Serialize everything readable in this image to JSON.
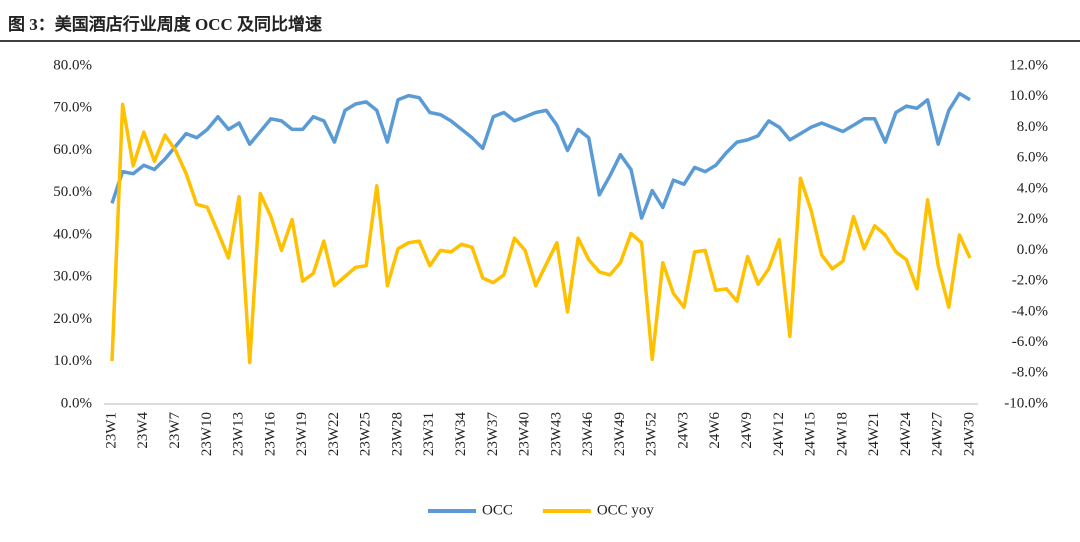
{
  "chart_data": {
    "type": "line",
    "title": "图 3：美国酒店行业周度 OCC 及同比增速",
    "categories": [
      "23W1",
      null,
      null,
      "23W4",
      null,
      null,
      "23W7",
      null,
      null,
      "23W10",
      null,
      null,
      "23W13",
      null,
      null,
      "23W16",
      null,
      null,
      "23W19",
      null,
      null,
      "23W22",
      null,
      null,
      "23W25",
      null,
      null,
      "23W28",
      null,
      null,
      "23W31",
      null,
      null,
      "23W34",
      null,
      null,
      "23W37",
      null,
      null,
      "23W40",
      null,
      null,
      "23W43",
      null,
      null,
      "23W46",
      null,
      null,
      "23W49",
      null,
      null,
      "23W52",
      null,
      null,
      "24W3",
      null,
      null,
      "24W6",
      null,
      null,
      "24W9",
      null,
      null,
      "24W12",
      null,
      null,
      "24W15",
      null,
      null,
      "24W18",
      null,
      null,
      "24W21",
      null,
      null,
      "24W24",
      null,
      null,
      "24W27",
      null,
      null,
      "24W30"
    ],
    "series": [
      {
        "name": "OCC",
        "color": "#5b9bd5",
        "values": [
          47.5,
          55,
          54.5,
          56.5,
          55.5,
          58,
          61,
          64,
          63,
          65,
          68,
          65,
          66.5,
          61.5,
          64.5,
          67.5,
          67,
          65,
          65,
          68,
          67,
          62,
          69.5,
          71,
          71.5,
          69.5,
          62,
          72,
          73,
          72.5,
          69,
          68.5,
          67,
          65,
          63,
          60.5,
          68,
          69,
          67,
          68,
          69,
          69.5,
          66,
          60,
          65,
          63,
          49.5,
          54,
          59,
          55.5,
          44,
          50.5,
          46.5,
          53,
          52,
          56,
          55,
          56.5,
          59.5,
          62,
          62.5,
          63.5,
          67,
          65.5,
          62.5,
          64,
          65.5,
          66.5,
          65.5,
          64.5,
          66,
          67.5,
          67.5,
          62,
          69,
          70.5,
          70,
          72,
          61.5,
          69.5,
          73.5,
          72
        ]
      },
      {
        "name": "OCC yoy",
        "color": "#ffc000",
        "axis": "y2",
        "values": [
          -7.2,
          9.5,
          5.5,
          7.7,
          5.8,
          7.5,
          6.5,
          5.0,
          3.0,
          2.8,
          1.2,
          -0.5,
          3.5,
          -7.3,
          3.7,
          2.2,
          0.0,
          2.0,
          -2.0,
          -1.5,
          0.6,
          -2.3,
          -1.7,
          -1.1,
          -1.0,
          4.2,
          -2.3,
          0.1,
          0.5,
          0.6,
          -1.0,
          0.0,
          -0.1,
          0.4,
          0.2,
          -1.8,
          -2.1,
          -1.6,
          0.8,
          0.0,
          -2.3,
          -0.9,
          0.5,
          -4.0,
          0.8,
          -0.6,
          -1.4,
          -1.6,
          -0.8,
          1.1,
          0.5,
          -7.1,
          -0.8,
          -2.8,
          -3.7,
          -0.1,
          0.0,
          -2.6,
          -2.5,
          -3.3,
          -0.4,
          -2.2,
          -1.2,
          0.7,
          -5.6,
          4.7,
          2.6,
          -0.3,
          -1.2,
          -0.7,
          2.2,
          0.1,
          1.6,
          1.0,
          -0.1,
          -0.6,
          -2.5,
          3.3,
          -1.0,
          -3.7,
          1.0,
          -0.5
        ]
      }
    ],
    "ylim": [
      0,
      80
    ],
    "yticks": [
      {
        "value": 0,
        "label": "0.0%"
      },
      {
        "value": 10,
        "label": "10.0%"
      },
      {
        "value": 20,
        "label": "20.0%"
      },
      {
        "value": 30,
        "label": "30.0%"
      },
      {
        "value": 40,
        "label": "40.0%"
      },
      {
        "value": 50,
        "label": "50.0%"
      },
      {
        "value": 60,
        "label": "60.0%"
      },
      {
        "value": 70,
        "label": "70.0%"
      },
      {
        "value": 80,
        "label": "80.0%"
      }
    ],
    "y2lim": [
      -10,
      12
    ],
    "y2ticks": [
      {
        "value": -10,
        "label": "-10.0%"
      },
      {
        "value": -8,
        "label": "-8.0%"
      },
      {
        "value": -6,
        "label": "-6.0%"
      },
      {
        "value": -4,
        "label": "-4.0%"
      },
      {
        "value": -2,
        "label": "-2.0%"
      },
      {
        "value": 0,
        "label": "0.0%"
      },
      {
        "value": 2,
        "label": "2.0%"
      },
      {
        "value": 4,
        "label": "4.0%"
      },
      {
        "value": 6,
        "label": "6.0%"
      },
      {
        "value": 8,
        "label": "8.0%"
      },
      {
        "value": 10,
        "label": "10.0%"
      },
      {
        "value": 12,
        "label": "12.0%"
      }
    ],
    "legend": "bottom",
    "grid": false
  }
}
